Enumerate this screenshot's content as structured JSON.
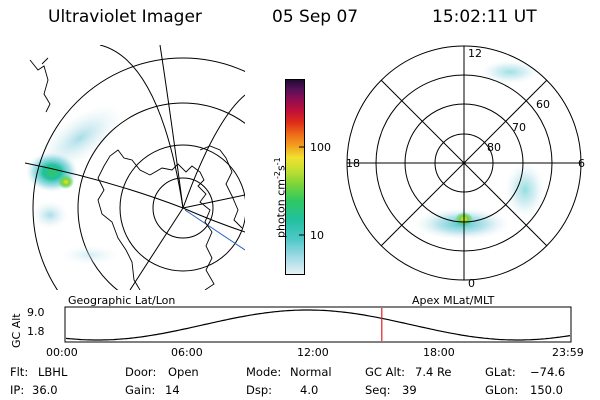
{
  "header": {
    "instrument": "Ultraviolet Imager",
    "date": "05 Sep 07",
    "time": "15:02:11 UT"
  },
  "colorbar": {
    "unit": "photon cm-2s-1",
    "ticks": [
      "100",
      "10"
    ],
    "colors": [
      "#e8f2f4",
      "#cfe8ee",
      "#a8dde8",
      "#7fd3e0",
      "#4fc8c8",
      "#22c0a0",
      "#30c860",
      "#7ad43a",
      "#c8e030",
      "#f2e030",
      "#f2a020",
      "#ee6a18",
      "#dd2c18",
      "#c0103a",
      "#8c0c52",
      "#541058",
      "#200a30"
    ]
  },
  "left_map": {
    "label": "Geographic Lat/Lon"
  },
  "right_map": {
    "label": "Apex MLat/MLT",
    "mlt_labels": [
      "12",
      "18",
      "6",
      "0"
    ],
    "mlat_labels": [
      "60",
      "70",
      "80"
    ]
  },
  "altitude_plot": {
    "ylabel": "GC Alt",
    "yticks": [
      "9.0",
      "1.8"
    ],
    "xticks": [
      "00:00",
      "06:00",
      "12:00",
      "18:00",
      "23:59"
    ],
    "current_time_hours": 15.04
  },
  "info": {
    "flt_label": "Flt:",
    "flt_value": "LBHL",
    "ip_label": "IP:",
    "ip_value": "36.0",
    "door_label": "Door:",
    "door_value": "Open",
    "gain_label": "Gain:",
    "gain_value": "14",
    "mode_label": "Mode:",
    "mode_value": "Normal",
    "dsp_label": "Dsp:",
    "dsp_value": "4.0",
    "gcalt_label": "GC Alt:",
    "gcalt_value": "7.4 Re",
    "seq_label": "Seq:",
    "seq_value": "39",
    "glat_label": "GLat:",
    "glat_value": "−74.6",
    "glon_label": "GLon:",
    "glon_value": "150.0"
  }
}
